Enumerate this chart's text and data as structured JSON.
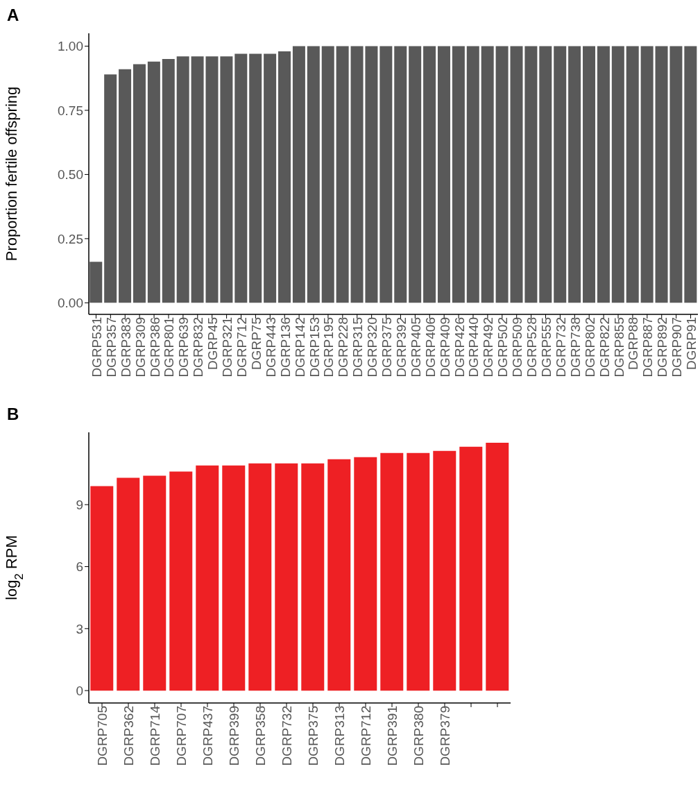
{
  "chart_data": [
    {
      "type": "bar",
      "title": "A",
      "ylabel": "Proportion fertile offspring",
      "categories": [
        "DGRP531",
        "DGRP357",
        "DGRP383",
        "DGRP309",
        "DGRP386",
        "DGRP801",
        "DGRP639",
        "DGRP832",
        "DGRP45",
        "DGRP321",
        "DGRP712",
        "DGRP75",
        "DGRP443",
        "DGRP136",
        "DGRP142",
        "DGRP153",
        "DGRP195",
        "DGRP228",
        "DGRP315",
        "DGRP320",
        "DGRP375",
        "DGRP392",
        "DGRP405",
        "DGRP406",
        "DGRP409",
        "DGRP426",
        "DGRP440",
        "DGRP492",
        "DGRP502",
        "DGRP509",
        "DGRP528",
        "DGRP555",
        "DGRP732",
        "DGRP738",
        "DGRP802",
        "DGRP822",
        "DGRP855",
        "DGRP88",
        "DGRP887",
        "DGRP892",
        "DGRP907",
        "DGRP91"
      ],
      "values": [
        0.16,
        0.89,
        0.91,
        0.93,
        0.94,
        0.95,
        0.96,
        0.96,
        0.96,
        0.96,
        0.97,
        0.97,
        0.97,
        0.98,
        1,
        1,
        1,
        1,
        1,
        1,
        1,
        1,
        1,
        1,
        1,
        1,
        1,
        1,
        1,
        1,
        1,
        1,
        1,
        1,
        1,
        1,
        1,
        1,
        1,
        1,
        1,
        1
      ],
      "color": "#595959",
      "ylim": [
        -0.045,
        1.05
      ],
      "yticks": [
        {
          "value": 0,
          "label": "0.00"
        },
        {
          "value": 0.25,
          "label": "0.25"
        },
        {
          "value": 0.5,
          "label": "0.50"
        },
        {
          "value": 0.75,
          "label": "0.75"
        },
        {
          "value": 1,
          "label": "1.00"
        }
      ]
    },
    {
      "type": "bar",
      "title": "B",
      "ylabel": "log$_{2}$ RPM",
      "categories": [
        "DGRP705",
        "DGRP362",
        "DGRP714",
        "DGRP707",
        "DGRP437",
        "DGRP399",
        "DGRP358",
        "DGRP732",
        "DGRP375",
        "DGRP313",
        "DGRP712",
        "DGRP391",
        "DGRP380",
        "DGRP379",
        null,
        null
      ],
      "values": [
        9.9,
        10.3,
        10.4,
        10.6,
        10.9,
        10.9,
        11.0,
        11.0,
        11.0,
        11.2,
        11.3,
        11.5,
        11.5,
        11.6,
        11.8,
        12.0
      ],
      "color": "#ee2024",
      "ylim": [
        -0.6,
        12.5
      ],
      "yticks": [
        0,
        3,
        6,
        9
      ]
    }
  ]
}
